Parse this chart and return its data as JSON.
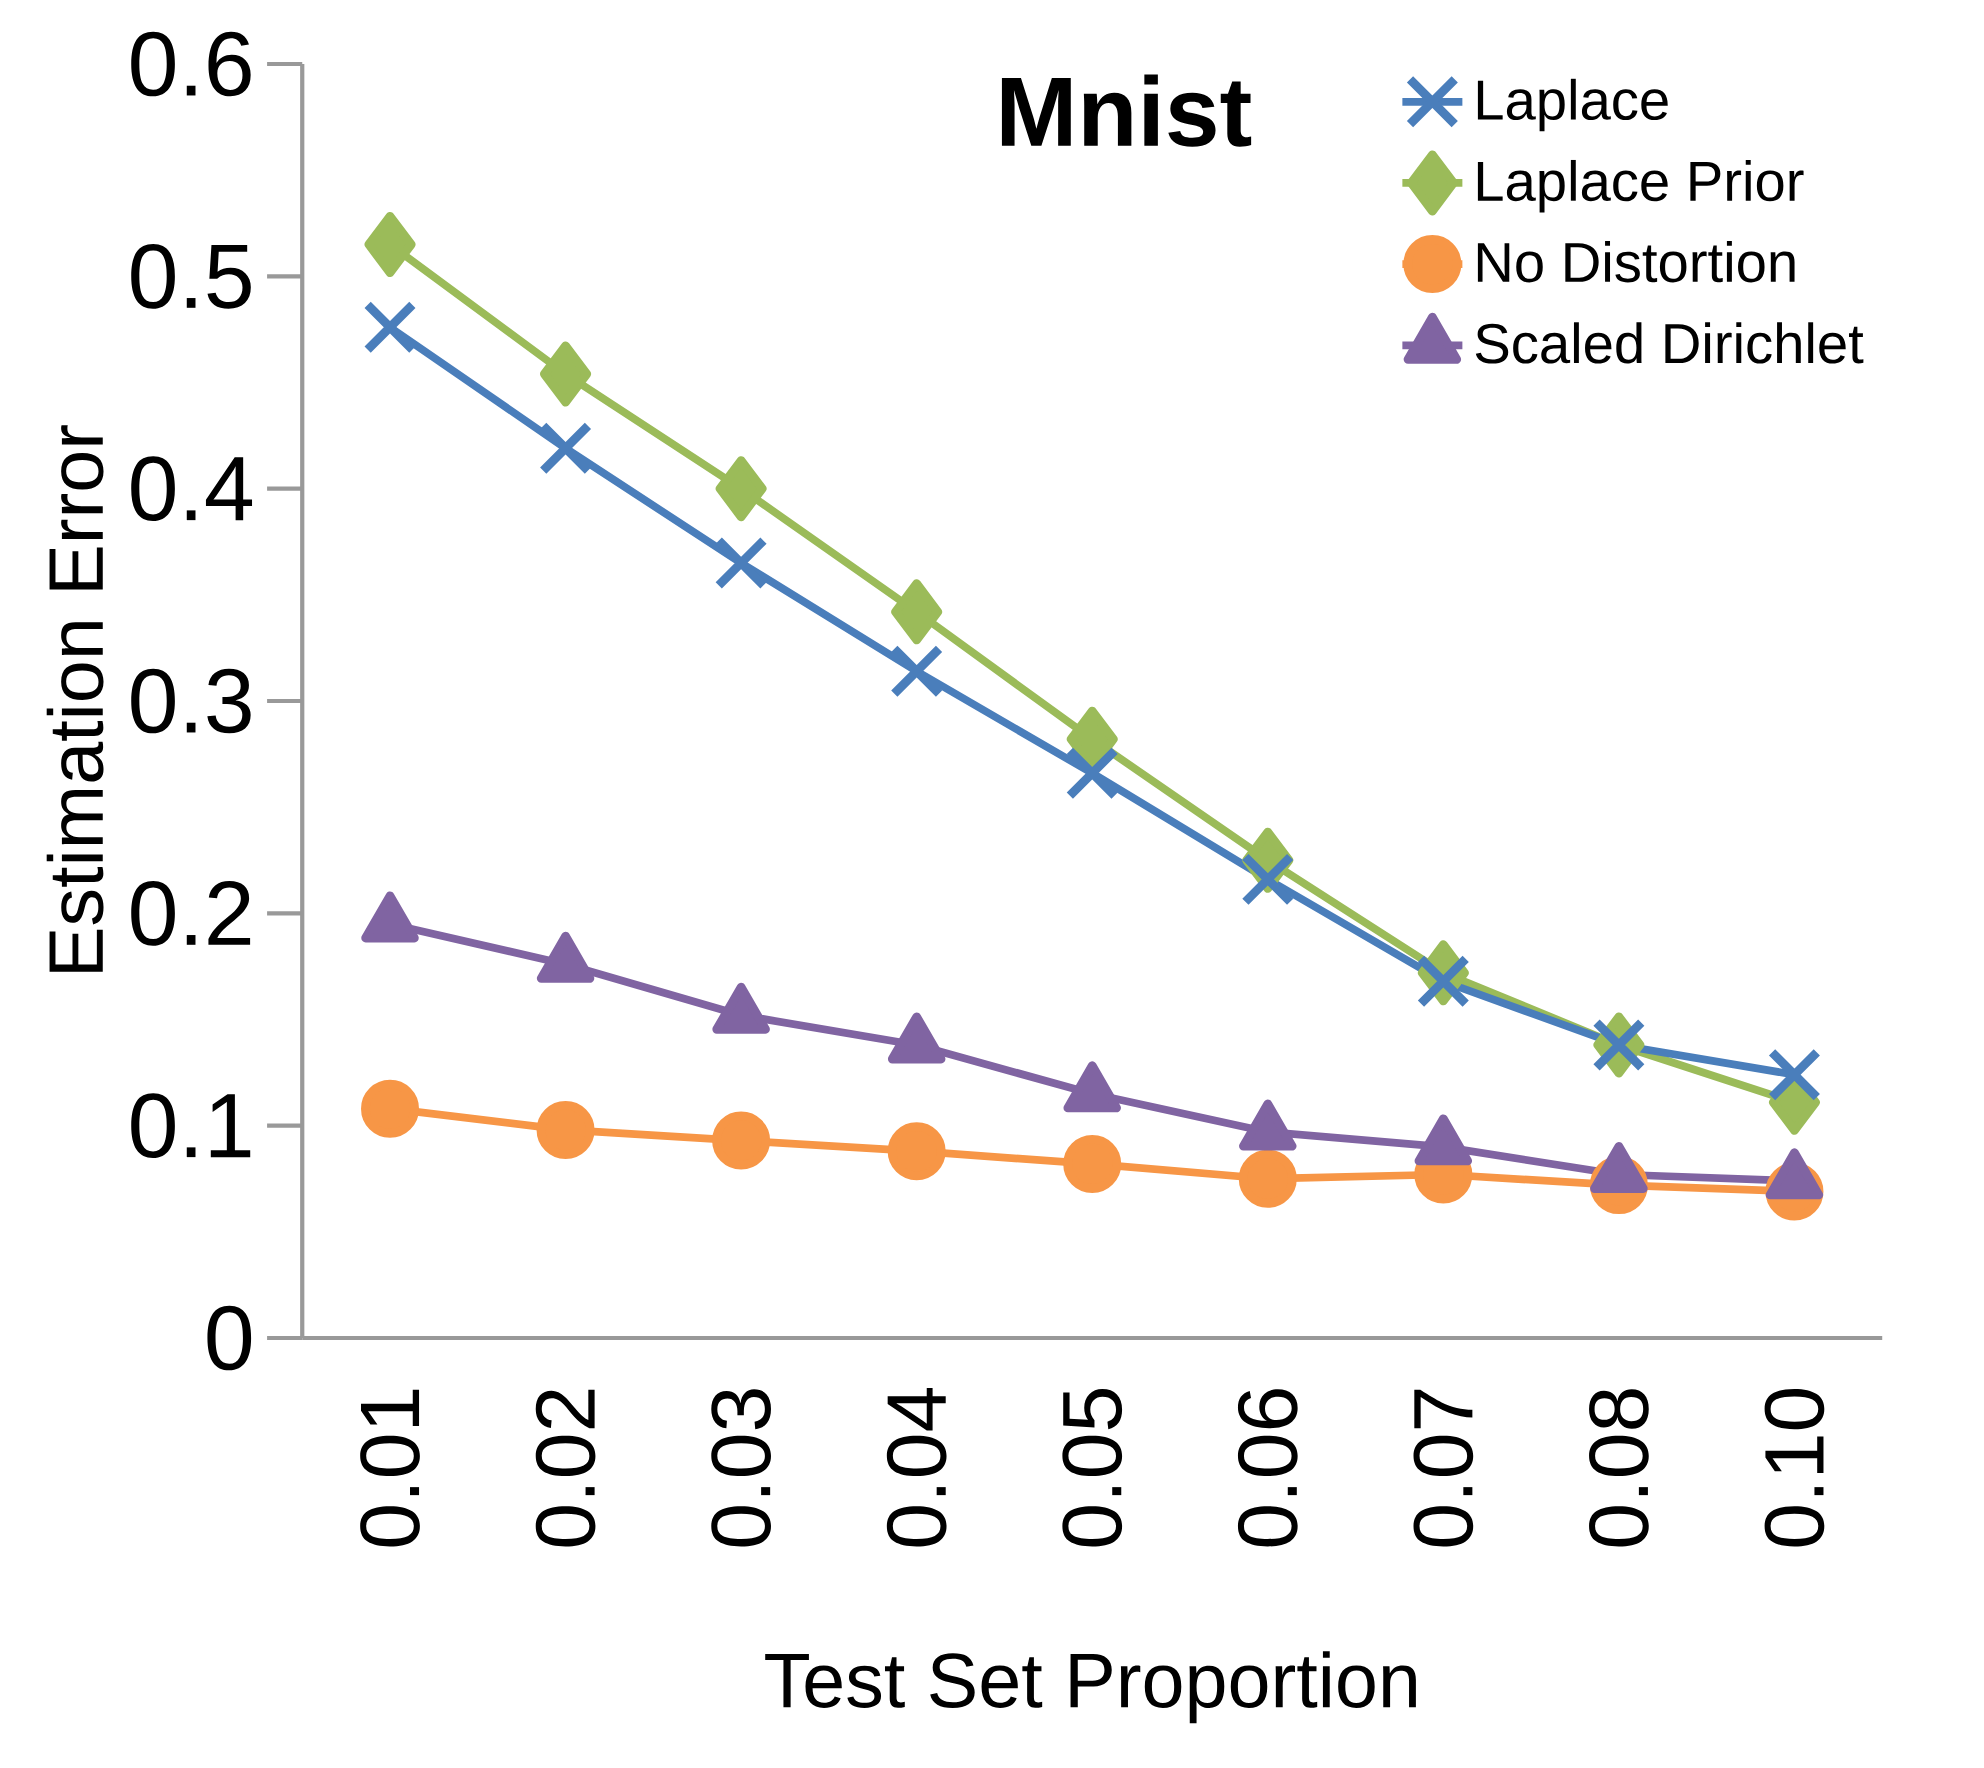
{
  "chart_data": {
    "type": "line",
    "title": "Mnist",
    "xlabel": "Test Set Proportion",
    "ylabel": "Estimation Error",
    "categories": [
      "0.01",
      "0.02",
      "0.03",
      "0.04",
      "0.05",
      "0.06",
      "0.07",
      "0.08",
      "0.10"
    ],
    "series": [
      {
        "name": "Laplace",
        "color": "#4a7ebb",
        "marker": "cross",
        "values": [
          0.476,
          0.419,
          0.365,
          0.314,
          0.266,
          0.216,
          0.168,
          0.138,
          0.124
        ]
      },
      {
        "name": "Laplace Prior",
        "color": "#9bbb59",
        "marker": "diamond",
        "values": [
          0.515,
          0.454,
          0.4,
          0.342,
          0.282,
          0.225,
          0.172,
          0.138,
          0.111
        ]
      },
      {
        "name": "No Distortion",
        "color": "#f79646",
        "marker": "circle",
        "values": [
          0.108,
          0.098,
          0.093,
          0.088,
          0.082,
          0.075,
          0.077,
          0.072,
          0.069
        ]
      },
      {
        "name": "Scaled Dirichlet",
        "color": "#8064a2",
        "marker": "triangle",
        "values": [
          0.195,
          0.176,
          0.152,
          0.138,
          0.115,
          0.097,
          0.09,
          0.077,
          0.074
        ]
      }
    ],
    "ylim": [
      0,
      0.6
    ],
    "yticks": [
      0,
      0.1,
      0.2,
      0.3,
      0.4,
      0.5,
      0.6
    ],
    "legend": "top right",
    "grid": false
  }
}
